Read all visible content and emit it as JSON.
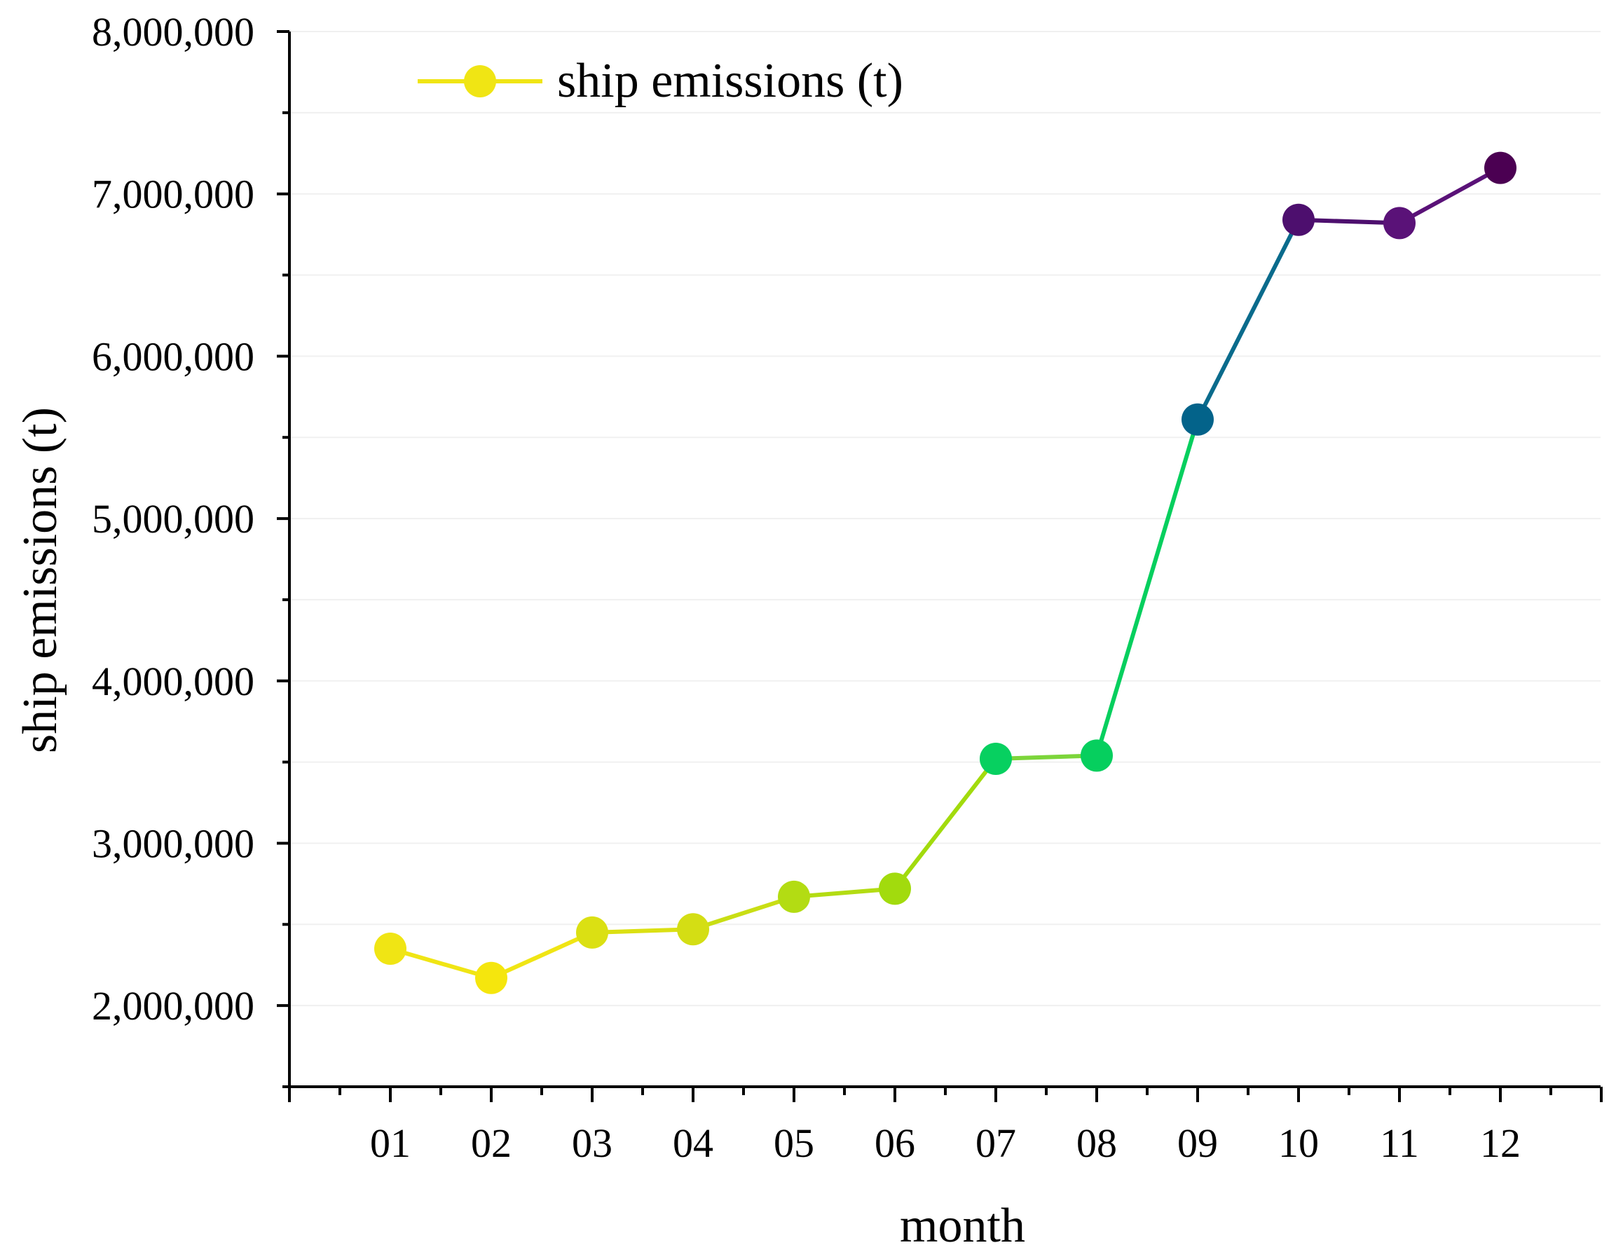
{
  "chart_data": {
    "type": "line",
    "title": "",
    "xlabel": "month",
    "ylabel": "ship emissions (t)",
    "ylim": [
      1500000,
      8000000
    ],
    "yticks": [
      2000000,
      3000000,
      4000000,
      5000000,
      6000000,
      7000000,
      8000000
    ],
    "ytick_labels": [
      "2,000,000",
      "3,000,000",
      "4,000,000",
      "5,000,000",
      "6,000,000",
      "7,000,000",
      "8,000,000"
    ],
    "categories": [
      "01",
      "02",
      "03",
      "04",
      "05",
      "06",
      "07",
      "08",
      "09",
      "10",
      "11",
      "12"
    ],
    "grid": true,
    "legend_position": "top-left",
    "series": [
      {
        "name": "ship emissions (t)",
        "values": [
          2350000,
          2170000,
          2450000,
          2470000,
          2670000,
          2720000,
          3520000,
          3540000,
          5610000,
          6840000,
          6820000,
          7160000
        ],
        "point_colors": [
          "#f0e514",
          "#f5e60d",
          "#dbe013",
          "#d4de14",
          "#b3dc13",
          "#a2db0d",
          "#07d060",
          "#06cf5e",
          "#03638a",
          "#4d0f6e",
          "#5a1278",
          "#4b0052"
        ],
        "segment_colors": [
          "#f0e514",
          "#f0e514",
          "#dbe013",
          "#c9de14",
          "#b3dc13",
          "#a2db0d",
          "#7cd53a",
          "#06cf5e",
          "#0a6b8c",
          "#4d0f6e",
          "#5a1278"
        ],
        "legend_color": "#f0e514"
      }
    ]
  }
}
